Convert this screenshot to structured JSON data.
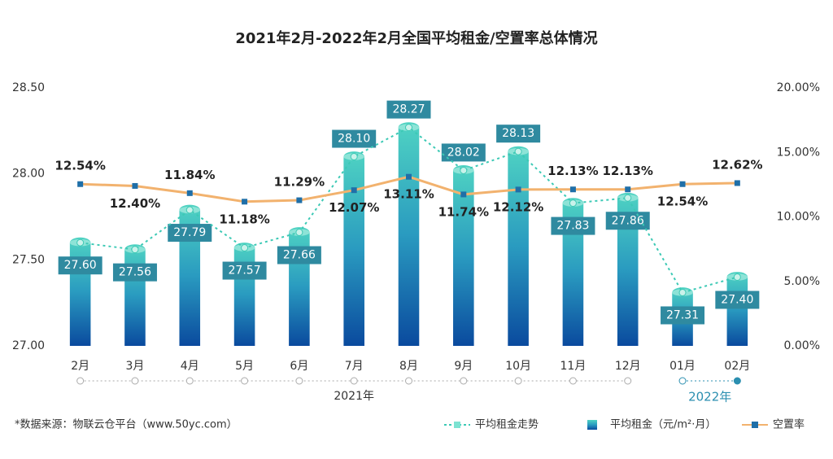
{
  "chart_data": {
    "type": "bar",
    "title": "2021年2月-2022年2月全国平均租金/空置率总体情况",
    "categories": [
      "2月",
      "3月",
      "4月",
      "5月",
      "6月",
      "7月",
      "8月",
      "9月",
      "10月",
      "11月",
      "12月",
      "01月",
      "02月"
    ],
    "x_groups": [
      "2021年",
      "2022年"
    ],
    "ylim": [
      27.0,
      28.5
    ],
    "yticks": [
      {
        "value": 27.0,
        "label": "27.00"
      },
      {
        "value": 27.5,
        "label": "27.50"
      },
      {
        "value": 28.0,
        "label": "28.00"
      },
      {
        "value": 28.5,
        "label": "28.50"
      }
    ],
    "y2lim": [
      0,
      20
    ],
    "y2ticks": [
      {
        "value": 0,
        "label": "0.00%"
      },
      {
        "value": 5,
        "label": "5.00%"
      },
      {
        "value": 10,
        "label": "10.00%"
      },
      {
        "value": 15,
        "label": "15.00%"
      },
      {
        "value": 20,
        "label": "20.00%"
      }
    ],
    "series": [
      {
        "name": "平均租金（元/m²·月）",
        "type": "bar",
        "color": "#1f7fb5",
        "values": [
          27.6,
          27.56,
          27.79,
          27.57,
          27.66,
          28.1,
          28.27,
          28.02,
          28.13,
          27.83,
          27.86,
          27.31,
          27.4
        ],
        "value_labels": [
          "27.60",
          "27.56",
          "27.79",
          "27.57",
          "27.66",
          "28.10",
          "28.27",
          "28.02",
          "28.13",
          "27.83",
          "27.86",
          "27.31",
          "27.40"
        ]
      },
      {
        "name": "平均租金走势",
        "type": "line",
        "dashed": true,
        "color": "#3cc9b5",
        "values": [
          27.6,
          27.56,
          27.79,
          27.57,
          27.66,
          28.1,
          28.27,
          28.02,
          28.13,
          27.83,
          27.86,
          27.31,
          27.4
        ]
      },
      {
        "name": "空置率",
        "type": "line",
        "axis": "y2",
        "color": "#f2b26e",
        "marker_color": "#1f6fa8",
        "values": [
          12.54,
          12.4,
          11.84,
          11.18,
          11.29,
          12.07,
          13.11,
          11.74,
          12.12,
          12.13,
          12.13,
          12.54,
          12.62
        ],
        "value_labels": [
          "12.54%",
          "12.40%",
          "11.84%",
          "11.18%",
          "11.29%",
          "12.07%",
          "13.11%",
          "11.74%",
          "12.12%",
          "12.13%",
          "12.13%",
          "12.54%",
          "12.62%"
        ]
      }
    ],
    "source": "*数据来源：物联云仓平台（www.50yc.com）"
  }
}
